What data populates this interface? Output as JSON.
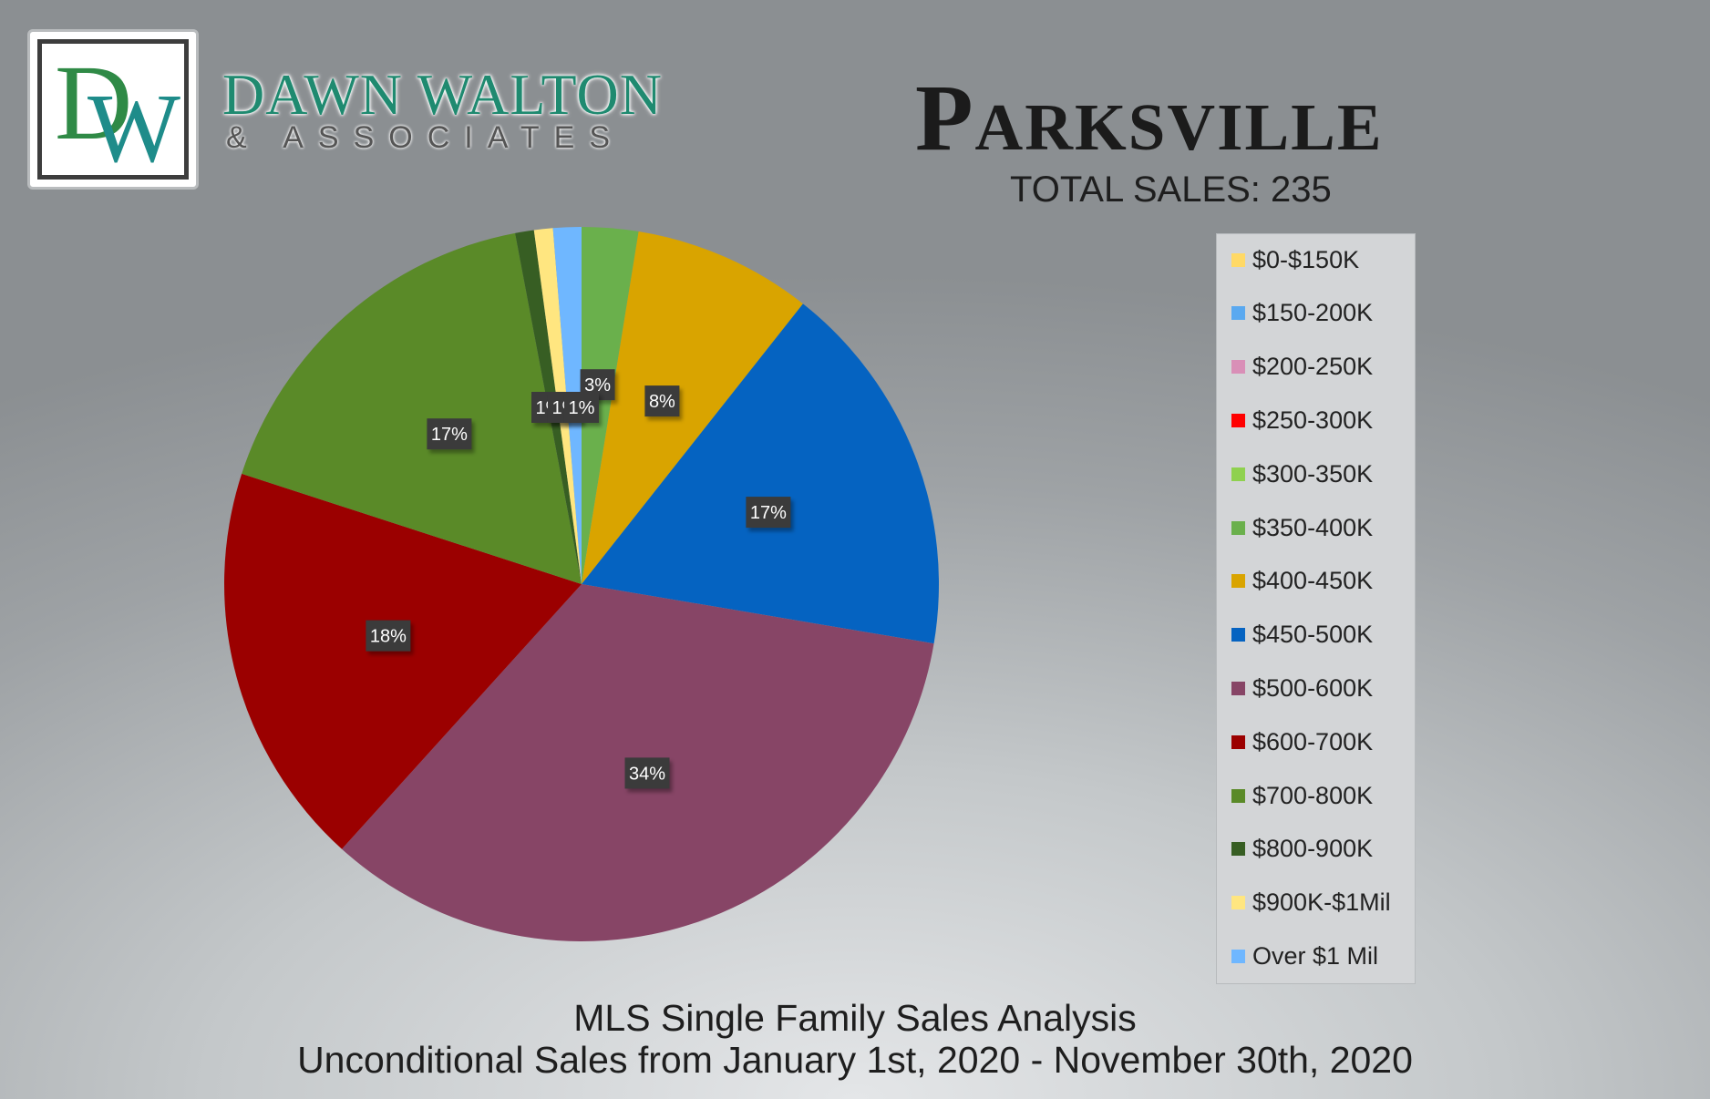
{
  "logo": {
    "monogram_d": "D",
    "monogram_w": "W",
    "name": "DAWN WALTON",
    "subtitle": "& ASSOCIATES"
  },
  "header": {
    "title": "Parksville",
    "total_sales": "TOTAL SALES: 235"
  },
  "footer": {
    "line1": "MLS Single Family Sales Analysis",
    "line2": "Unconditional Sales from January 1st, 2020 - November 30th, 2020"
  },
  "chart_data": {
    "type": "pie",
    "title": "",
    "legend_position": "right",
    "categories": [
      "$0-$150K",
      "$150-200K",
      "$200-250K",
      "$250-300K",
      "$300-350K",
      "$350-400K",
      "$400-450K",
      "$450-500K",
      "$500-600K",
      "$600-700K",
      "$700-800K",
      "$800-900K",
      "$900K-$1Mil",
      "Over $1 Mil"
    ],
    "values": [
      0,
      0,
      0,
      0,
      0,
      6,
      19,
      40,
      80,
      43,
      40,
      2,
      2,
      3
    ],
    "data_labels": [
      "",
      "",
      "",
      "",
      "",
      "3%",
      "8%",
      "17%",
      "34%",
      "18%",
      "17%",
      "1%",
      "1%",
      "1%"
    ],
    "colors": [
      "#ffd966",
      "#5aa9f0",
      "#d98fb7",
      "#ff0000",
      "#8fd14f",
      "#6ab04c",
      "#d9a400",
      "#0563c1",
      "#874566",
      "#9b0000",
      "#5a8a28",
      "#375e23",
      "#ffe680",
      "#6fb7ff"
    ],
    "start_angle_deg": 0,
    "direction": "clockwise"
  }
}
